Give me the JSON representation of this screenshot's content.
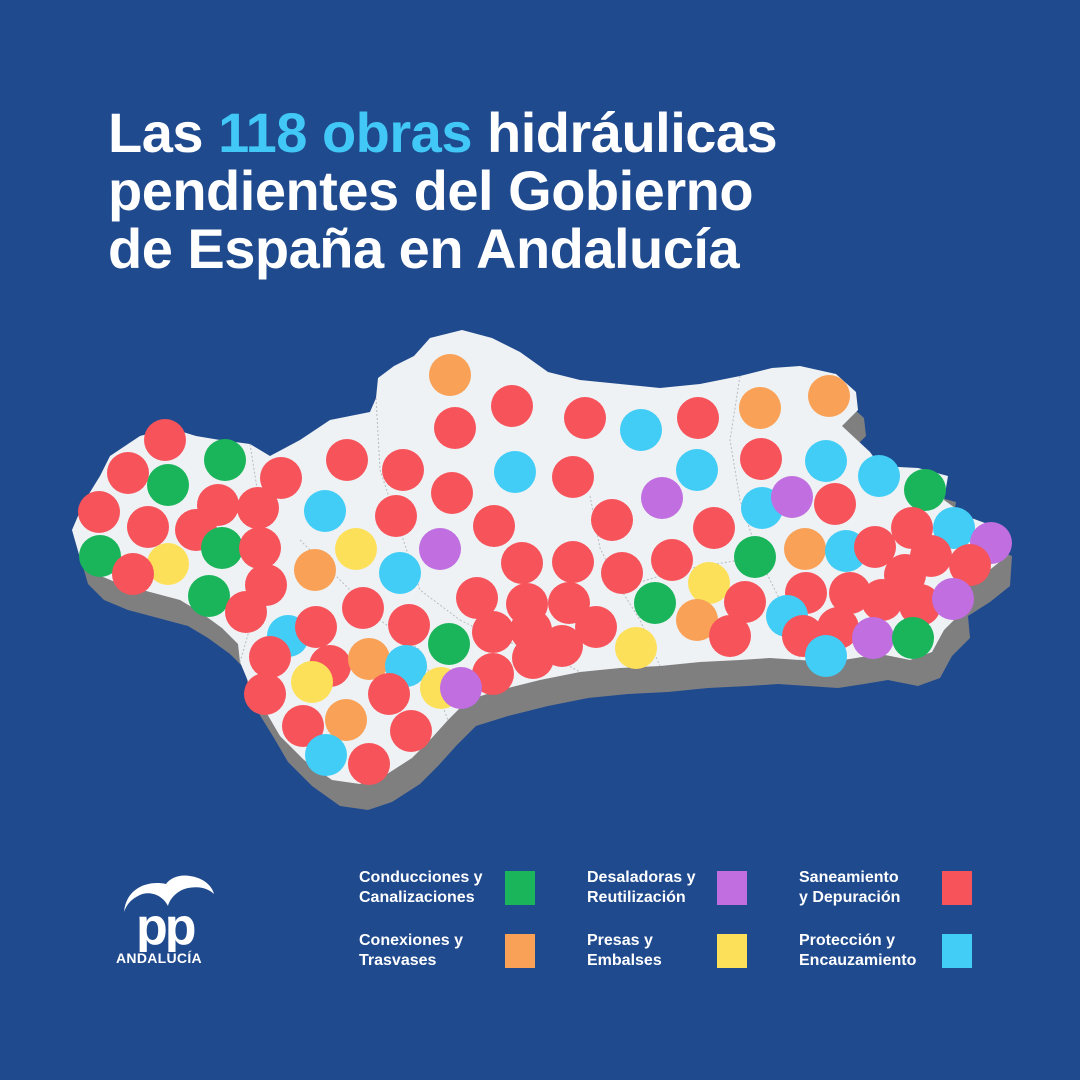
{
  "title": {
    "prefix": "Las ",
    "highlight": "118 obras",
    "line1_suffix": " hidráulicas",
    "line2": "pendientes del Gobierno",
    "line3": "de España en Andalucía"
  },
  "logo": {
    "name": "pp-logo",
    "sub": "ANDALUCÍA"
  },
  "colors": {
    "background": "#1f4a8e",
    "map_land": "#eff2f4",
    "map_shadow": "#7f7f80",
    "highlight": "#41c8f6"
  },
  "categories": [
    {
      "key": "conducciones",
      "line1": "Conducciones y",
      "line2": "Canalizaciones",
      "color": "#1ab55a"
    },
    {
      "key": "desaladoras",
      "line1": "Desaladoras y",
      "line2": "Reutilización",
      "color": "#c06ee0"
    },
    {
      "key": "saneamiento",
      "line1": "Saneamiento",
      "line2": "y Depuración",
      "color": "#f7535b"
    },
    {
      "key": "conexiones",
      "line1": "Conexiones y",
      "line2": "Trasvases",
      "color": "#f8a157"
    },
    {
      "key": "presas",
      "line1": "Presas y",
      "line2": "Embalses",
      "color": "#fde05a"
    },
    {
      "key": "proteccion",
      "line1": "Protección y",
      "line2": "Encauzamiento",
      "color": "#41cdf6"
    }
  ]
}
